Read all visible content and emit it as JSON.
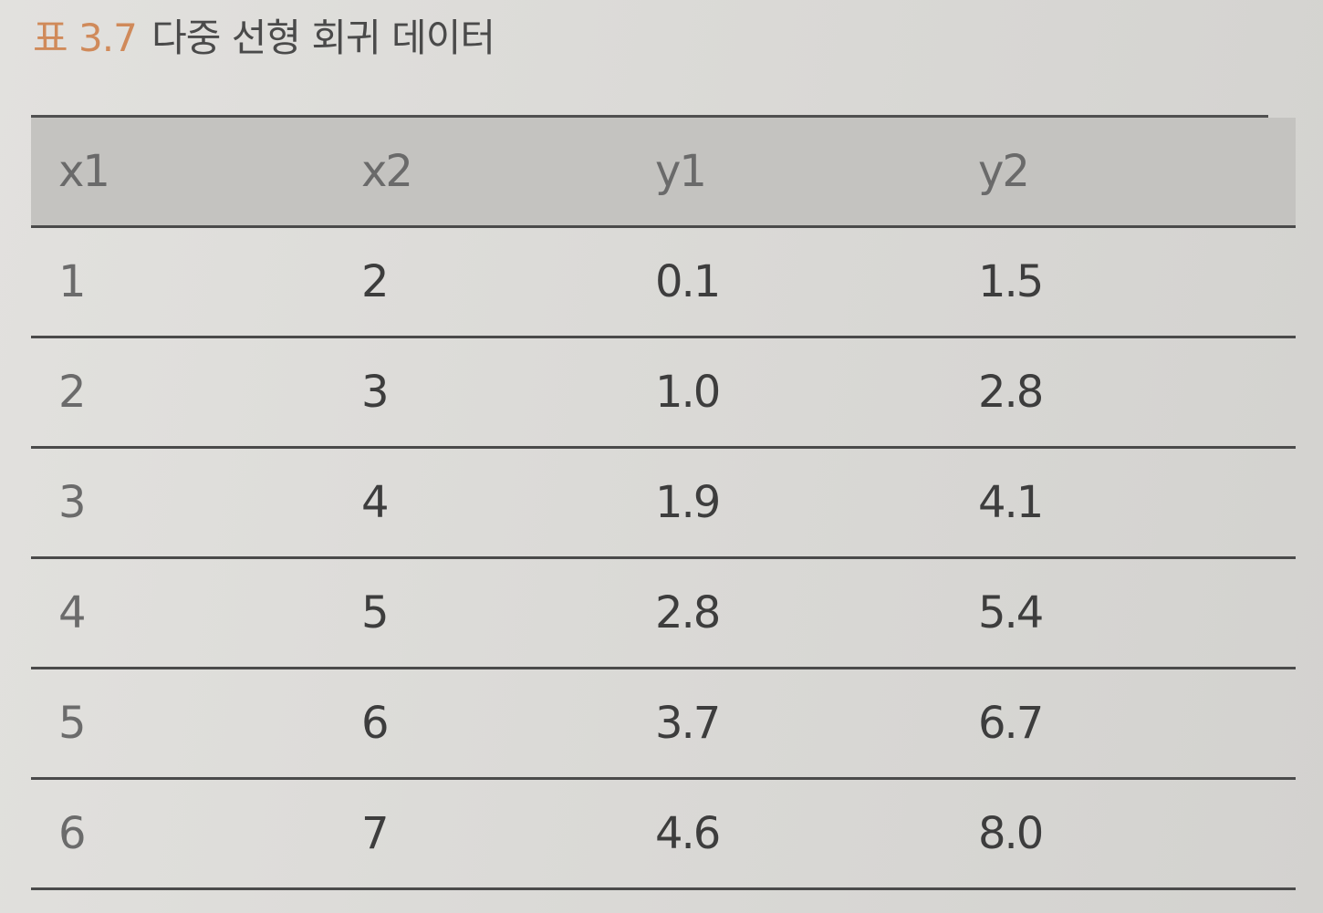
{
  "caption": {
    "label": "표 3.7",
    "title": "다중 선형 회귀 데이터"
  },
  "table": {
    "headers": [
      "x1",
      "x2",
      "y1",
      "y2"
    ],
    "rows": [
      [
        "1",
        "2",
        "0.1",
        "1.5"
      ],
      [
        "2",
        "3",
        "1.0",
        "2.8"
      ],
      [
        "3",
        "4",
        "1.9",
        "4.1"
      ],
      [
        "4",
        "5",
        "2.8",
        "5.4"
      ],
      [
        "5",
        "6",
        "3.7",
        "6.7"
      ],
      [
        "6",
        "7",
        "4.6",
        "8.0"
      ]
    ]
  }
}
